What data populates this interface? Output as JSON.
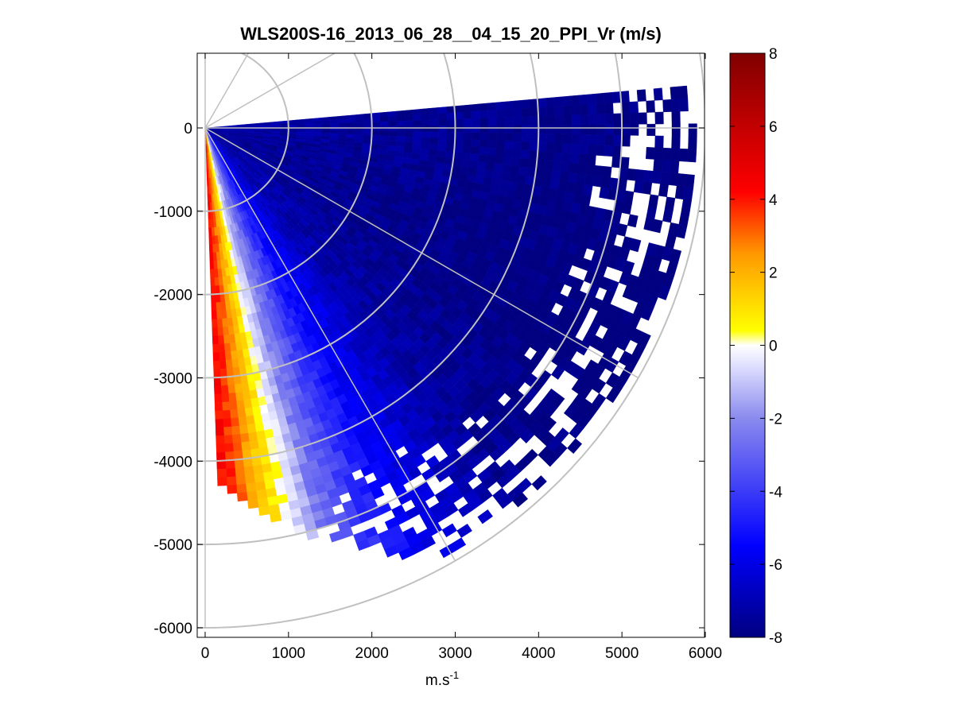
{
  "chart_data": {
    "type": "heatmap",
    "subtype": "ppi-polar-sector",
    "title": "WLS200S-16_2013_06_28__04_15_20_PPI_Vr (m/s)",
    "xlabel": "m.s",
    "xlabel_superscript": "-1",
    "ylabel": "",
    "xlim": [
      -100,
      6000
    ],
    "ylim": [
      -6100,
      900
    ],
    "x_ticks": [
      0,
      1000,
      2000,
      3000,
      4000,
      5000,
      6000
    ],
    "x_tick_labels": [
      "0",
      "1000",
      "2000",
      "3000",
      "4000",
      "5000",
      "6000"
    ],
    "y_ticks": [
      0,
      -1000,
      -2000,
      -3000,
      -4000,
      -5000,
      -6000
    ],
    "y_tick_labels": [
      "0",
      "-1000",
      "-2000",
      "-3000",
      "-4000",
      "-5000",
      "-6000"
    ],
    "range_rings_m": [
      1000,
      2000,
      3000,
      4000,
      5000,
      6000
    ],
    "radial_lines_deg": [
      0,
      30,
      60,
      90,
      -30,
      -60,
      -90
    ],
    "data_sector": {
      "azimuth_start_deg": 5,
      "azimuth_end_deg": -88,
      "max_range_m": 5900,
      "gate_spacing_m": 100,
      "beam_width_deg": 1.5,
      "velocity_profile": [
        {
          "azimuth_deg": -88,
          "vr_ms": 4.5
        },
        {
          "azimuth_deg": -84,
          "vr_ms": 3.0
        },
        {
          "azimuth_deg": -80,
          "vr_ms": 1.0
        },
        {
          "azimuth_deg": -76,
          "vr_ms": -1.0
        },
        {
          "azimuth_deg": -70,
          "vr_ms": -3.0
        },
        {
          "azimuth_deg": -63,
          "vr_ms": -5.0
        },
        {
          "azimuth_deg": -50,
          "vr_ms": -6.8
        },
        {
          "azimuth_deg": -30,
          "vr_ms": -7.5
        },
        {
          "azimuth_deg": 5,
          "vr_ms": -7.2
        }
      ]
    },
    "colorbar": {
      "min": -8,
      "max": 8,
      "ticks": [
        8,
        6,
        4,
        2,
        0,
        -2,
        -4,
        -6,
        -8
      ],
      "tick_labels": [
        "8",
        "6",
        "4",
        "2",
        "0",
        "-2",
        "-4",
        "-6",
        "-8"
      ],
      "colormap": "blue-white-yellow-red",
      "colors": {
        "min": "#000080",
        "blue": "#0000ff",
        "light_blue": "#8a8aee",
        "pale": "#ddddff",
        "white": "#ffffff",
        "yellow": "#ffff00",
        "orange": "#ff9900",
        "red": "#ff0000",
        "max": "#800000"
      }
    },
    "grid_color": "#c0c0c0"
  }
}
